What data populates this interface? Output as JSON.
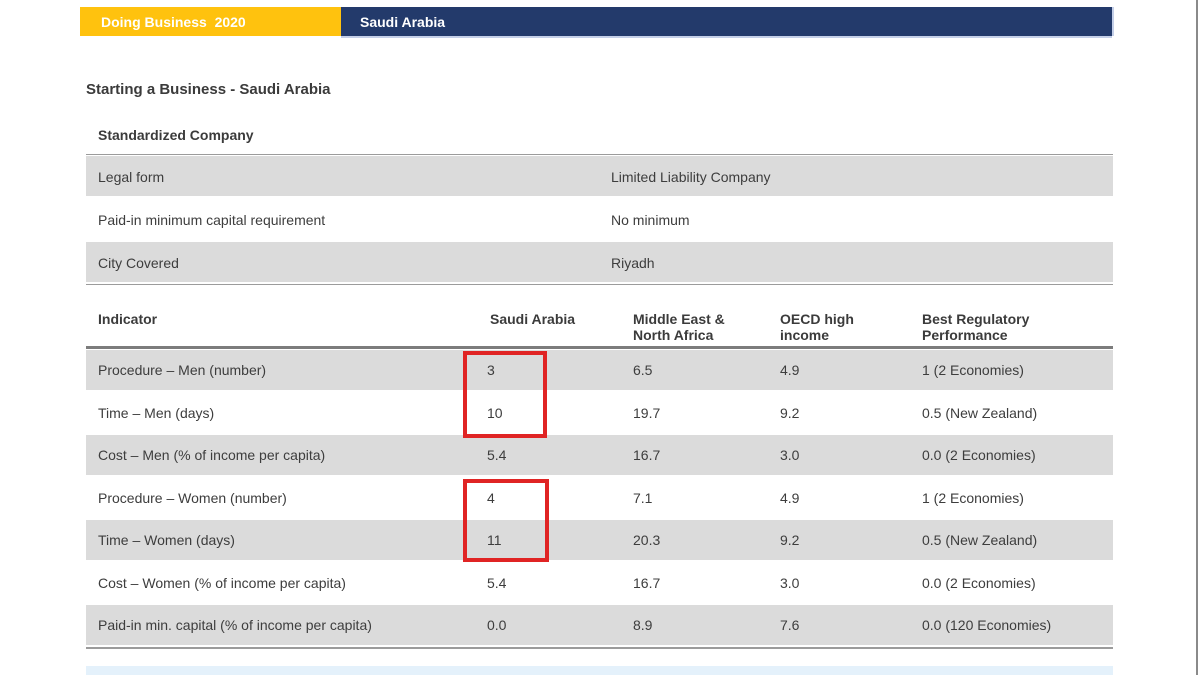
{
  "topbar": {
    "brand": "Doing Business  2020",
    "country": "Saudi Arabia"
  },
  "page_title": "Starting a Business - Saudi Arabia",
  "standardized_company": {
    "heading": "Standardized Company",
    "rows": [
      {
        "label": "Legal form",
        "value": "Limited Liability Company"
      },
      {
        "label": "Paid-in minimum capital requirement",
        "value": "No minimum"
      },
      {
        "label": "City Covered",
        "value": "Riyadh"
      }
    ]
  },
  "indicator_table": {
    "columns": [
      "Indicator",
      "Saudi Arabia",
      "Middle East & North Africa",
      "OECD high income",
      "Best Regulatory Performance"
    ],
    "rows": [
      {
        "indicator": "Procedure – Men (number)",
        "saudi_arabia": "3",
        "middle_east_north_africa": "6.5",
        "oecd_high_income": "4.9",
        "best_regulatory_performance": "1 (2 Economies)"
      },
      {
        "indicator": "Time – Men (days)",
        "saudi_arabia": "10",
        "middle_east_north_africa": "19.7",
        "oecd_high_income": "9.2",
        "best_regulatory_performance": "0.5 (New Zealand)"
      },
      {
        "indicator": "Cost – Men (% of income per capita)",
        "saudi_arabia": "5.4",
        "middle_east_north_africa": "16.7",
        "oecd_high_income": "3.0",
        "best_regulatory_performance": "0.0 (2 Economies)"
      },
      {
        "indicator": "Procedure – Women (number)",
        "saudi_arabia": "4",
        "middle_east_north_africa": "7.1",
        "oecd_high_income": "4.9",
        "best_regulatory_performance": "1 (2 Economies)"
      },
      {
        "indicator": "Time – Women (days)",
        "saudi_arabia": "11",
        "middle_east_north_africa": "20.3",
        "oecd_high_income": "9.2",
        "best_regulatory_performance": "0.5 (New Zealand)"
      },
      {
        "indicator": "Cost – Women (% of income per capita)",
        "saudi_arabia": "5.4",
        "middle_east_north_africa": "16.7",
        "oecd_high_income": "3.0",
        "best_regulatory_performance": "0.0 (2 Economies)"
      },
      {
        "indicator": "Paid-in min. capital (% of income per capita)",
        "saudi_arabia": "0.0",
        "middle_east_north_africa": "8.9",
        "oecd_high_income": "7.6",
        "best_regulatory_performance": "0.0 (120 Economies)"
      }
    ]
  },
  "annotations": {
    "highlighted_values": [
      "3",
      "10",
      "4",
      "11"
    ],
    "highlight_color": "#E02424"
  },
  "colors": {
    "brand_yellow": "#FFC20E",
    "brand_navy": "#233A6B",
    "row_gray": "#DBDBDB",
    "footer_blue": "#E4F1FB"
  }
}
